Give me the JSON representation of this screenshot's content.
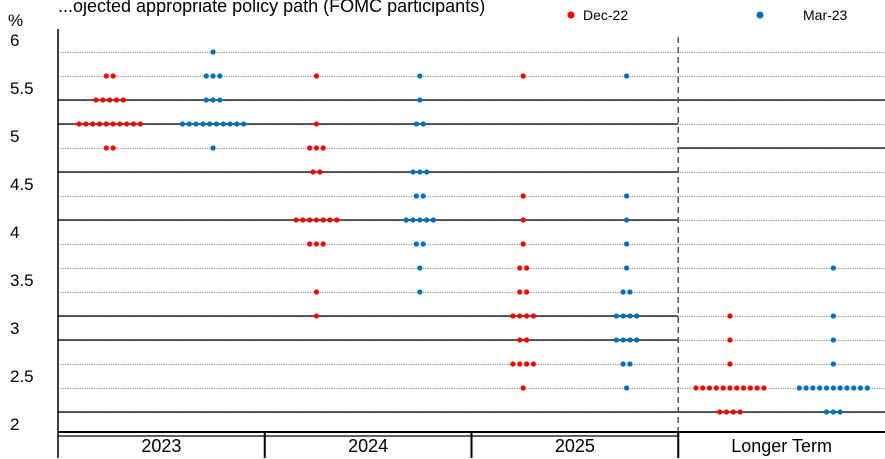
{
  "chart_data": {
    "type": "scatter",
    "title": "...ojected appropriate policy path (FOMC participants)",
    "y_unit_label": "%",
    "ylim": [
      1.75,
      6.15
    ],
    "yticks": [
      "6",
      "5.5",
      "5",
      "4.5",
      "4",
      "3.5",
      "3",
      "2.5",
      "2"
    ],
    "categories": [
      "2023",
      "2024",
      "2025",
      "Longer Term"
    ],
    "legend": {
      "placement": "top-right"
    },
    "grid": true,
    "series": [
      {
        "name": "Dec-22",
        "color": "#ff0000",
        "dots": [
          [
            {
              "y": 5.625,
              "count": 2
            },
            {
              "y": 5.375,
              "count": 5
            },
            {
              "y": 5.125,
              "count": 10
            },
            {
              "y": 4.875,
              "count": 2
            }
          ],
          [
            {
              "y": 5.625,
              "count": 1
            },
            {
              "y": 5.125,
              "count": 1
            },
            {
              "y": 4.875,
              "count": 3
            },
            {
              "y": 4.625,
              "count": 2
            },
            {
              "y": 4.125,
              "count": 7
            },
            {
              "y": 3.875,
              "count": 3
            },
            {
              "y": 3.375,
              "count": 1
            },
            {
              "y": 3.125,
              "count": 1
            }
          ],
          [
            {
              "y": 5.625,
              "count": 1
            },
            {
              "y": 4.375,
              "count": 1
            },
            {
              "y": 4.125,
              "count": 1
            },
            {
              "y": 3.875,
              "count": 1
            },
            {
              "y": 3.625,
              "count": 2
            },
            {
              "y": 3.375,
              "count": 2
            },
            {
              "y": 3.125,
              "count": 4
            },
            {
              "y": 2.875,
              "count": 2
            },
            {
              "y": 2.625,
              "count": 4
            },
            {
              "y": 2.375,
              "count": 1
            }
          ],
          [
            {
              "y": 3.125,
              "count": 1
            },
            {
              "y": 2.875,
              "count": 1
            },
            {
              "y": 2.625,
              "count": 1
            },
            {
              "y": 2.375,
              "count": 11
            },
            {
              "y": 2.125,
              "count": 4
            }
          ]
        ]
      },
      {
        "name": "Mar-23",
        "color": "#0070c0",
        "dots": [
          [
            {
              "y": 5.875,
              "count": 1
            },
            {
              "y": 5.625,
              "count": 3
            },
            {
              "y": 5.375,
              "count": 3
            },
            {
              "y": 5.125,
              "count": 10
            },
            {
              "y": 4.875,
              "count": 1
            }
          ],
          [
            {
              "y": 5.625,
              "count": 1
            },
            {
              "y": 5.375,
              "count": 1
            },
            {
              "y": 5.125,
              "count": 2
            },
            {
              "y": 4.625,
              "count": 3
            },
            {
              "y": 4.375,
              "count": 2
            },
            {
              "y": 4.125,
              "count": 5
            },
            {
              "y": 3.875,
              "count": 2
            },
            {
              "y": 3.625,
              "count": 1
            },
            {
              "y": 3.375,
              "count": 1
            }
          ],
          [
            {
              "y": 5.625,
              "count": 1
            },
            {
              "y": 4.375,
              "count": 1
            },
            {
              "y": 4.125,
              "count": 1
            },
            {
              "y": 3.875,
              "count": 1
            },
            {
              "y": 3.625,
              "count": 1
            },
            {
              "y": 3.375,
              "count": 2
            },
            {
              "y": 3.125,
              "count": 4
            },
            {
              "y": 2.875,
              "count": 4
            },
            {
              "y": 2.625,
              "count": 2
            },
            {
              "y": 2.375,
              "count": 1
            }
          ],
          [
            {
              "y": 3.625,
              "count": 1
            },
            {
              "y": 3.125,
              "count": 1
            },
            {
              "y": 2.875,
              "count": 1
            },
            {
              "y": 2.625,
              "count": 1
            },
            {
              "y": 2.375,
              "count": 11
            },
            {
              "y": 2.125,
              "count": 3
            }
          ]
        ]
      }
    ]
  }
}
